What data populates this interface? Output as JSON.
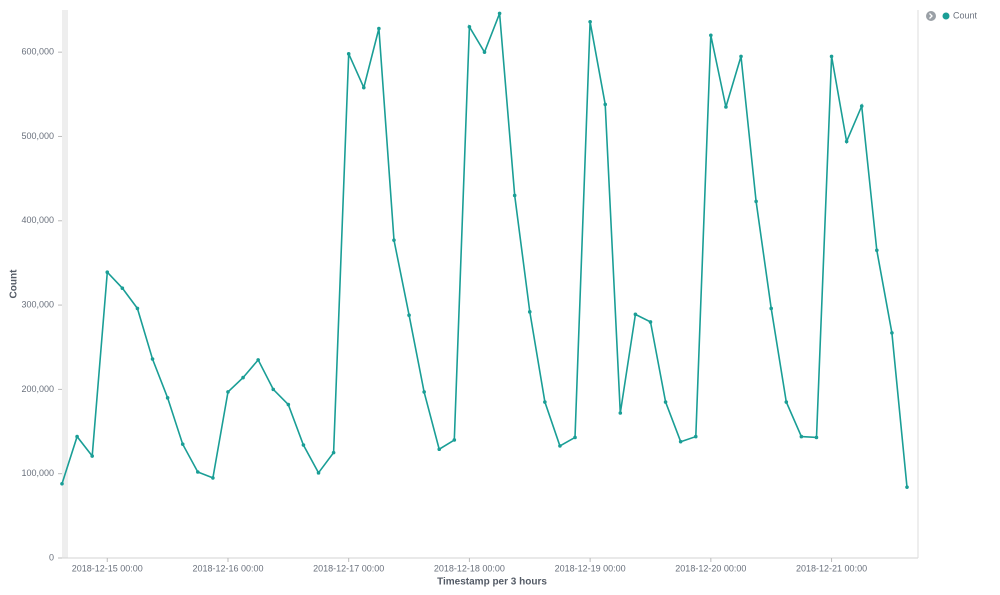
{
  "chart_data": {
    "type": "line",
    "x_label": "Timestamp per 3 hours",
    "y_label": "Count",
    "categories": [
      null,
      null,
      null,
      "2018-12-15 00:00",
      null,
      null,
      null,
      null,
      null,
      null,
      null,
      "2018-12-16 00:00",
      null,
      null,
      null,
      null,
      null,
      null,
      null,
      "2018-12-17 00:00",
      null,
      null,
      null,
      null,
      null,
      null,
      null,
      "2018-12-18 00:00",
      null,
      null,
      null,
      null,
      null,
      null,
      null,
      "2018-12-19 00:00",
      null,
      null,
      null,
      null,
      null,
      null,
      null,
      "2018-12-20 00:00",
      null,
      null,
      null,
      null,
      null,
      null,
      null,
      "2018-12-21 00:00",
      null,
      null,
      null,
      null,
      null
    ],
    "series": [
      {
        "name": "Count",
        "color": "#1a9e96",
        "values": [
          88000,
          144000,
          121000,
          339000,
          320000,
          296000,
          236000,
          190000,
          135000,
          102000,
          95000,
          197000,
          214000,
          235000,
          200000,
          182000,
          134000,
          101000,
          125000,
          598000,
          558000,
          628000,
          377000,
          288000,
          197000,
          129000,
          140000,
          630000,
          600000,
          646000,
          430000,
          292000,
          185000,
          133000,
          143000,
          636000,
          538000,
          172000,
          289000,
          280000,
          185000,
          138000,
          144000,
          620000,
          535000,
          595000,
          423000,
          296000,
          185000,
          144000,
          143000,
          595000,
          494000,
          536000,
          365000,
          267000,
          84000
        ]
      }
    ],
    "ylim": [
      0,
      650000
    ],
    "yticks": [
      0,
      {
        "value": 100000,
        "label": "100,000"
      },
      {
        "value": 200000,
        "label": "200,000"
      },
      {
        "value": 300000,
        "label": "300,000"
      },
      {
        "value": 400000,
        "label": "400,000"
      },
      {
        "value": 500000,
        "label": "500,000"
      },
      {
        "value": 600000,
        "label": "600,000"
      }
    ],
    "legend": "top-right",
    "grid": false
  }
}
